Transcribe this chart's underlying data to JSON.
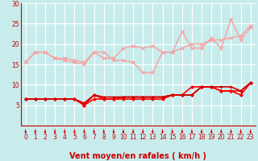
{
  "xlabel": "Vent moyen/en rafales ( km/h )",
  "background_color": "#c8ecec",
  "grid_color": "#aacccc",
  "xlim": [
    -0.5,
    23.5
  ],
  "ylim": [
    0,
    30
  ],
  "yticks": [
    5,
    10,
    15,
    20,
    25,
    30
  ],
  "xticks": [
    0,
    1,
    2,
    3,
    4,
    5,
    6,
    7,
    8,
    9,
    10,
    11,
    12,
    13,
    14,
    15,
    16,
    17,
    18,
    19,
    20,
    21,
    22,
    23
  ],
  "series_light": [
    {
      "x": [
        0,
        1,
        2,
        3,
        4,
        5,
        6,
        7,
        8,
        9,
        10,
        11,
        12,
        13,
        14,
        15,
        16,
        17,
        18,
        19,
        20,
        21,
        22,
        23
      ],
      "y": [
        15.5,
        18,
        18,
        16.5,
        16.5,
        16,
        15.5,
        18,
        18,
        16,
        16,
        15.5,
        13,
        13,
        18,
        18,
        23,
        19,
        19,
        21.5,
        19,
        26,
        21,
        24
      ],
      "color": "#f8a0a0",
      "lw": 1.0,
      "marker": "x",
      "ms": 2.5
    },
    {
      "x": [
        0,
        1,
        2,
        3,
        4,
        5,
        6,
        7,
        8,
        9,
        10,
        11,
        12,
        13,
        14,
        15,
        16,
        17,
        18,
        19,
        20,
        21,
        22,
        23
      ],
      "y": [
        15.5,
        18,
        18,
        16.5,
        16,
        15.5,
        15,
        18,
        16.5,
        16.5,
        19,
        19.5,
        19,
        19.5,
        18,
        18,
        19,
        20,
        20,
        21,
        21,
        21.5,
        22,
        24.5
      ],
      "color": "#f8a0a0",
      "lw": 1.0,
      "marker": "x",
      "ms": 2.5
    }
  ],
  "series_dark": [
    {
      "x": [
        0,
        1,
        2,
        3,
        4,
        5,
        6,
        7,
        8,
        9,
        10,
        11,
        12,
        13,
        14,
        15,
        16,
        17,
        18,
        19,
        20,
        21,
        22,
        23
      ],
      "y": [
        6.5,
        6.5,
        6.5,
        6.5,
        6.5,
        6.5,
        5.0,
        6.5,
        6.5,
        6.5,
        6.5,
        6.5,
        6.5,
        6.5,
        6.5,
        7.5,
        7.5,
        7.5,
        9.5,
        9.5,
        8.5,
        8.5,
        7.5,
        10.5
      ],
      "color": "#ff0000",
      "lw": 1.2,
      "marker": "D",
      "ms": 1.8
    },
    {
      "x": [
        0,
        1,
        2,
        3,
        4,
        5,
        6,
        7,
        8,
        9,
        10,
        11,
        12,
        13,
        14,
        15,
        16,
        17,
        18,
        19,
        20,
        21,
        22,
        23
      ],
      "y": [
        6.5,
        6.5,
        6.5,
        6.5,
        6.5,
        6.5,
        5.0,
        7.5,
        6.5,
        6.5,
        7.0,
        7.0,
        7.0,
        7.0,
        7.0,
        7.5,
        7.5,
        9.5,
        9.5,
        9.5,
        8.5,
        8.5,
        8.5,
        10.5
      ],
      "color": "#ff0000",
      "lw": 1.2,
      "marker": "D",
      "ms": 1.8
    },
    {
      "x": [
        0,
        1,
        2,
        3,
        4,
        5,
        6,
        7,
        8,
        9,
        10,
        11,
        12,
        13,
        14,
        15,
        16,
        17,
        18,
        19,
        20,
        21,
        22,
        23
      ],
      "y": [
        6.5,
        6.5,
        6.5,
        6.5,
        6.5,
        6.5,
        5.5,
        7.5,
        7.0,
        7.0,
        7.0,
        7.0,
        7.0,
        7.0,
        7.0,
        7.5,
        7.5,
        7.5,
        9.5,
        9.5,
        9.5,
        9.5,
        8.5,
        10.5
      ],
      "color": "#cc0000",
      "lw": 1.2,
      "marker": "+",
      "ms": 2.5
    }
  ],
  "arrow_color": "#cc0000",
  "xlabel_color": "#cc0000",
  "xlabel_fontsize": 7,
  "tick_fontsize": 5.5,
  "tick_color": "#cc0000"
}
